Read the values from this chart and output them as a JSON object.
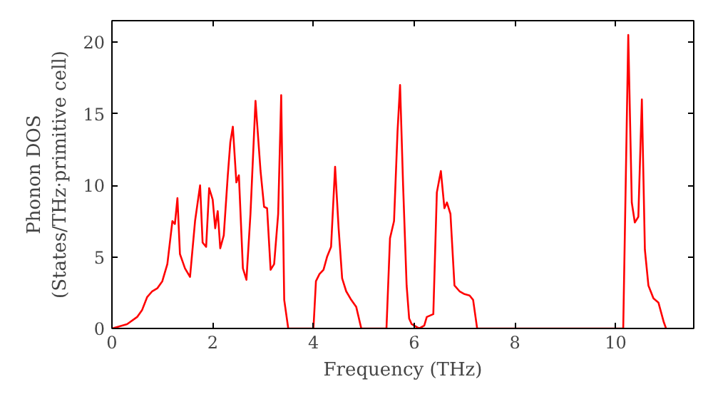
{
  "chart_data": {
    "type": "line",
    "xlabel": "Frequency (THz)",
    "ylabel": "Phonon DOS\n(States/THz·primitive cell)",
    "xlim": [
      0,
      11.55
    ],
    "ylim": [
      0,
      21.5
    ],
    "xticks": [
      0,
      2,
      4,
      6,
      8,
      10
    ],
    "yticks": [
      0,
      5,
      10,
      15,
      20
    ],
    "grid": false,
    "series": [
      {
        "color": "#ff0000",
        "x": [
          0,
          0.3,
          0.5,
          0.6,
          0.7,
          0.8,
          0.9,
          1.0,
          1.1,
          1.2,
          1.25,
          1.3,
          1.35,
          1.45,
          1.55,
          1.65,
          1.75,
          1.8,
          1.87,
          1.93,
          2.0,
          2.05,
          2.1,
          2.15,
          2.22,
          2.3,
          2.35,
          2.4,
          2.47,
          2.52,
          2.6,
          2.67,
          2.75,
          2.85,
          2.95,
          3.02,
          3.08,
          3.15,
          3.22,
          3.3,
          3.36,
          3.42,
          3.5,
          4.0,
          4.05,
          4.12,
          4.2,
          4.27,
          4.35,
          4.43,
          4.5,
          4.57,
          4.65,
          4.75,
          4.85,
          4.95,
          5.45,
          5.52,
          5.6,
          5.67,
          5.72,
          5.78,
          5.85,
          5.9,
          5.95,
          6.1,
          6.2,
          6.25,
          6.38,
          6.45,
          6.53,
          6.6,
          6.65,
          6.72,
          6.8,
          6.9,
          7.0,
          7.1,
          7.17,
          7.25,
          10.15,
          10.25,
          10.32,
          10.38,
          10.45,
          10.52,
          10.58,
          10.65,
          10.75,
          10.85,
          10.95,
          11.0
        ],
        "values": [
          0,
          0.3,
          0.8,
          1.3,
          2.2,
          2.6,
          2.8,
          3.3,
          4.5,
          7.5,
          7.3,
          9.1,
          5.2,
          4.2,
          3.6,
          7.5,
          10.0,
          6.0,
          5.7,
          9.8,
          9.0,
          7.0,
          8.2,
          5.6,
          6.5,
          10.7,
          13.0,
          14.1,
          10.2,
          10.7,
          4.2,
          3.4,
          8.0,
          15.9,
          11.0,
          8.5,
          8.4,
          4.1,
          4.5,
          8.0,
          16.3,
          2.0,
          0,
          0,
          3.3,
          3.8,
          4.1,
          5.0,
          5.7,
          11.3,
          7.0,
          3.5,
          2.6,
          2.0,
          1.5,
          0,
          0,
          6.3,
          7.5,
          13.8,
          17.0,
          10.0,
          3.0,
          0.7,
          0.3,
          0,
          0.2,
          0.8,
          1.0,
          9.5,
          11.0,
          8.4,
          8.8,
          8.0,
          3.0,
          2.6,
          2.4,
          2.3,
          2.0,
          0,
          0,
          20.5,
          8.8,
          7.4,
          7.8,
          16.0,
          5.5,
          3.0,
          2.1,
          1.8,
          0.5,
          0
        ]
      }
    ]
  }
}
